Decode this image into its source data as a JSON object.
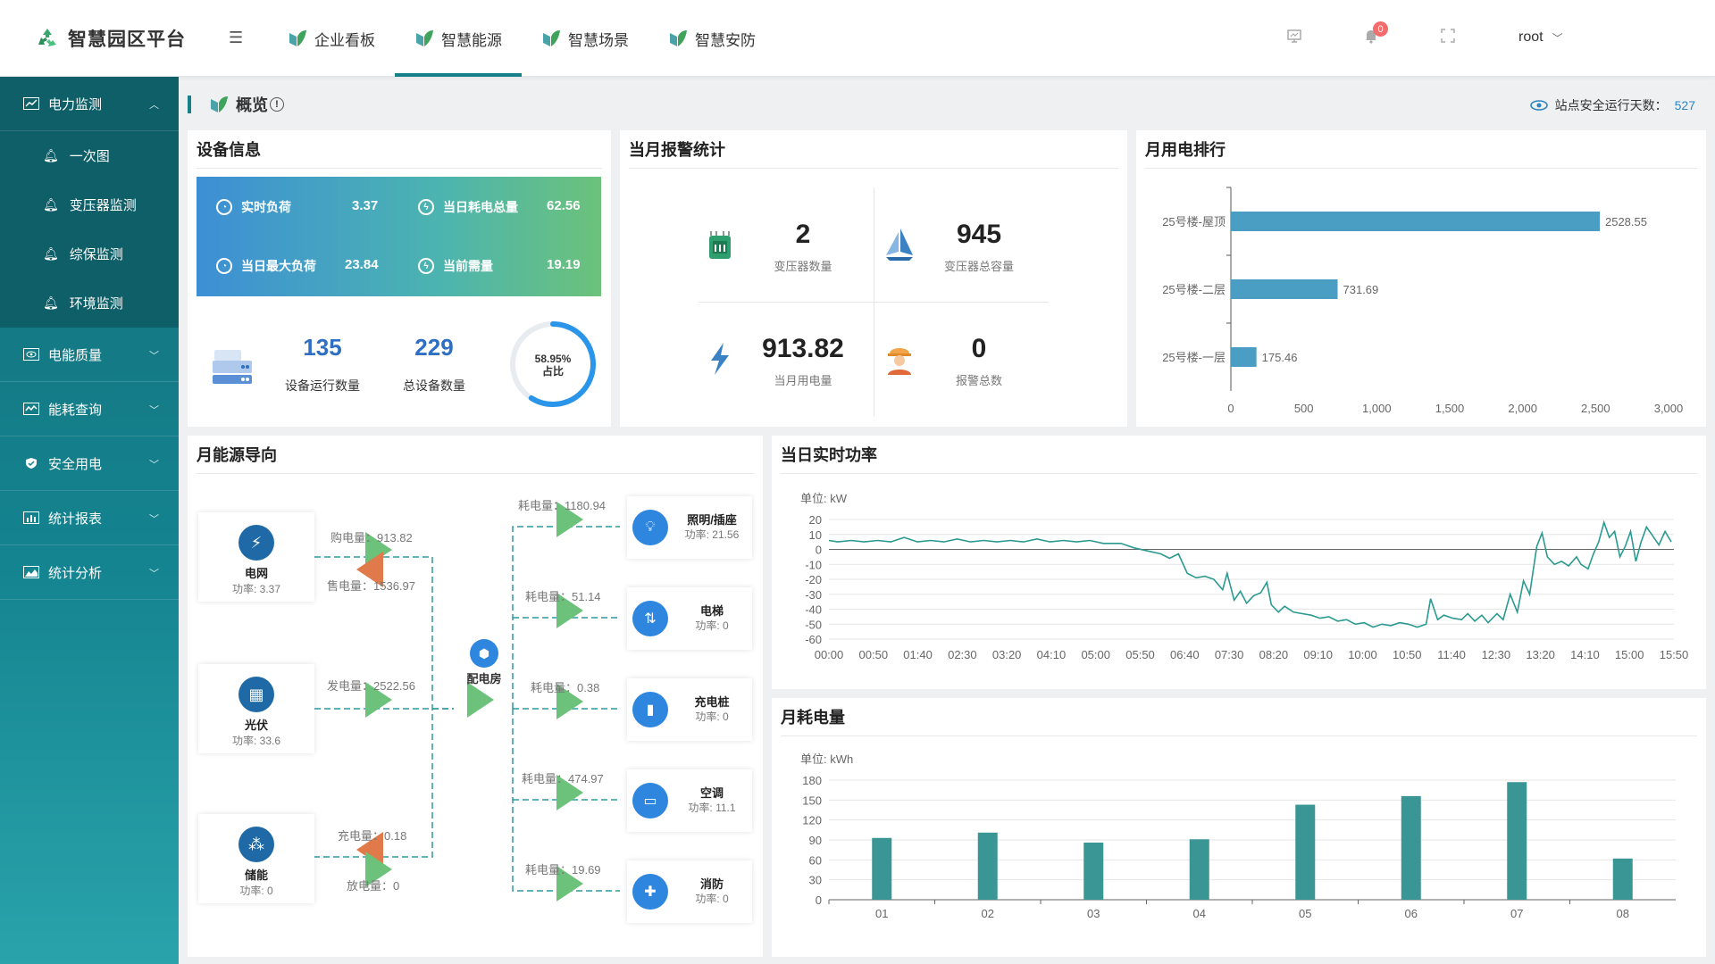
{
  "header": {
    "title": "智慧园区平台",
    "nav": [
      "企业看板",
      "智慧能源",
      "智慧场景",
      "智慧安防"
    ],
    "active_nav": 1,
    "notification_count": "0",
    "user": "root"
  },
  "sidebar": {
    "items": [
      {
        "label": "电力监测",
        "open": true,
        "sub": [
          "一次图",
          "变压器监测",
          "综保监测",
          "环境监测"
        ]
      },
      {
        "label": "电能质量"
      },
      {
        "label": "能耗查询"
      },
      {
        "label": "安全用电"
      },
      {
        "label": "统计报表"
      },
      {
        "label": "统计分析"
      }
    ]
  },
  "breadcrumb": {
    "title": "概览",
    "safe_days_label": "站点安全运行天数：",
    "safe_days": "527"
  },
  "device_info": {
    "title": "设备信息",
    "realtime_load_label": "实时负荷",
    "realtime_load": "3.37",
    "day_total_label": "当日耗电总量",
    "day_total": "62.56",
    "day_max_label": "当日最大负荷",
    "day_max": "23.84",
    "demand_label": "当前需量",
    "demand": "19.19",
    "running_count": "135",
    "running_label": "设备运行数量",
    "total_count": "229",
    "total_label": "总设备数量",
    "ratio": "58.95%",
    "ratio_label": "占比",
    "ratio_value": 0.5895
  },
  "alarm": {
    "title": "当月报警统计",
    "transformer_count": "2",
    "transformer_count_label": "变压器数量",
    "capacity": "945",
    "capacity_label": "变压器总容量",
    "month_power": "913.82",
    "month_power_label": "当月用电量",
    "alarm_total": "0",
    "alarm_total_label": "报警总数"
  },
  "ranking": {
    "title": "月用电排行",
    "chart_data": {
      "type": "bar",
      "orientation": "horizontal",
      "categories": [
        "25号楼-屋顶",
        "25号楼-二层",
        "25号楼-一层"
      ],
      "values": [
        2528.55,
        731.69,
        175.46
      ],
      "value_labels": [
        "2528.55",
        "731.69",
        "175.46"
      ],
      "xlim": [
        0,
        3000
      ],
      "ticks": [
        "0",
        "500",
        "1,000",
        "1,500",
        "2,000",
        "2,500",
        "3,000"
      ]
    }
  },
  "flow": {
    "title": "月能源导向",
    "sources": [
      {
        "name": "电网",
        "power": "功率: 3.37"
      },
      {
        "name": "光伏",
        "power": "功率: 33.6"
      },
      {
        "name": "储能",
        "power": "功率: 0"
      }
    ],
    "buy": "购电量：913.82",
    "sell": "售电量：1536.97",
    "gen": "发电量：2522.56",
    "charge": "充电量：0.18",
    "discharge": "放电量：0",
    "hub": "配电房",
    "loads": [
      {
        "name": "照明/插座",
        "power": "功率: 21.56",
        "consumption": "耗电量：1180.94"
      },
      {
        "name": "电梯",
        "power": "功率: 0",
        "consumption": "耗电量：51.14"
      },
      {
        "name": "充电桩",
        "power": "功率: 0",
        "consumption": "耗电量：0.38"
      },
      {
        "name": "空调",
        "power": "功率: 11.1",
        "consumption": "耗电量：474.97"
      },
      {
        "name": "消防",
        "power": "功率: 0",
        "consumption": "耗电量：19.69"
      }
    ]
  },
  "realtime": {
    "title": "当日实时功率",
    "chart_data": {
      "type": "line",
      "unit": "单位: kW",
      "ylim": [
        -60,
        20
      ],
      "yticks": [
        20,
        10,
        0,
        -10,
        -20,
        -30,
        -40,
        -50,
        -60
      ],
      "x_ticks": [
        "00:00",
        "00:50",
        "01:40",
        "02:30",
        "03:20",
        "04:10",
        "05:00",
        "05:50",
        "06:40",
        "07:30",
        "08:20",
        "09:10",
        "10:00",
        "10:50",
        "11:40",
        "12:30",
        "13:20",
        "14:10",
        "15:00",
        "15:50"
      ],
      "x_minutes_range": [
        0,
        955
      ],
      "points": [
        [
          0,
          6
        ],
        [
          10,
          5
        ],
        [
          25,
          6
        ],
        [
          40,
          5
        ],
        [
          55,
          6
        ],
        [
          70,
          5
        ],
        [
          85,
          8
        ],
        [
          100,
          5
        ],
        [
          115,
          6
        ],
        [
          130,
          5
        ],
        [
          145,
          7
        ],
        [
          160,
          5
        ],
        [
          175,
          6
        ],
        [
          190,
          5
        ],
        [
          205,
          6
        ],
        [
          220,
          5
        ],
        [
          235,
          7
        ],
        [
          250,
          5
        ],
        [
          265,
          6
        ],
        [
          280,
          5
        ],
        [
          295,
          6
        ],
        [
          310,
          4
        ],
        [
          330,
          4
        ],
        [
          345,
          1
        ],
        [
          360,
          -1
        ],
        [
          375,
          -3
        ],
        [
          385,
          -6
        ],
        [
          395,
          -3
        ],
        [
          405,
          -16
        ],
        [
          415,
          -19
        ],
        [
          425,
          -18
        ],
        [
          435,
          -20
        ],
        [
          445,
          -27
        ],
        [
          450,
          -16
        ],
        [
          458,
          -34
        ],
        [
          465,
          -28
        ],
        [
          472,
          -36
        ],
        [
          480,
          -31
        ],
        [
          488,
          -29
        ],
        [
          495,
          -22
        ],
        [
          500,
          -37
        ],
        [
          508,
          -42
        ],
        [
          515,
          -38
        ],
        [
          525,
          -42
        ],
        [
          535,
          -43
        ],
        [
          545,
          -44
        ],
        [
          555,
          -46
        ],
        [
          565,
          -45
        ],
        [
          575,
          -48
        ],
        [
          585,
          -47
        ],
        [
          595,
          -50
        ],
        [
          605,
          -49
        ],
        [
          615,
          -52
        ],
        [
          625,
          -50
        ],
        [
          635,
          -51
        ],
        [
          645,
          -49
        ],
        [
          655,
          -50
        ],
        [
          665,
          -52
        ],
        [
          675,
          -50
        ],
        [
          680,
          -33
        ],
        [
          688,
          -47
        ],
        [
          695,
          -44
        ],
        [
          705,
          -46
        ],
        [
          715,
          -47
        ],
        [
          722,
          -43
        ],
        [
          730,
          -48
        ],
        [
          738,
          -44
        ],
        [
          745,
          -49
        ],
        [
          755,
          -43
        ],
        [
          762,
          -47
        ],
        [
          770,
          -30
        ],
        [
          778,
          -42
        ],
        [
          785,
          -21
        ],
        [
          792,
          -30
        ],
        [
          800,
          2
        ],
        [
          806,
          11
        ],
        [
          812,
          -5
        ],
        [
          820,
          -10
        ],
        [
          828,
          -8
        ],
        [
          836,
          -11
        ],
        [
          845,
          -5
        ],
        [
          850,
          -10
        ],
        [
          858,
          -13
        ],
        [
          864,
          -3
        ],
        [
          870,
          5
        ],
        [
          876,
          18
        ],
        [
          882,
          8
        ],
        [
          888,
          12
        ],
        [
          894,
          -5
        ],
        [
          900,
          2
        ],
        [
          906,
          12
        ],
        [
          912,
          -8
        ],
        [
          918,
          5
        ],
        [
          924,
          15
        ],
        [
          930,
          10
        ],
        [
          938,
          3
        ],
        [
          945,
          12
        ],
        [
          952,
          5
        ]
      ]
    }
  },
  "monthly": {
    "title": "月耗电量",
    "chart_data": {
      "type": "bar",
      "unit": "单位: kWh",
      "categories": [
        "01",
        "02",
        "03",
        "04",
        "05",
        "06",
        "07",
        "08"
      ],
      "values": [
        93,
        101,
        86,
        91,
        143,
        156,
        177,
        62
      ],
      "ylim": [
        0,
        180
      ],
      "yticks": [
        0,
        30,
        60,
        90,
        120,
        150,
        180
      ]
    }
  }
}
